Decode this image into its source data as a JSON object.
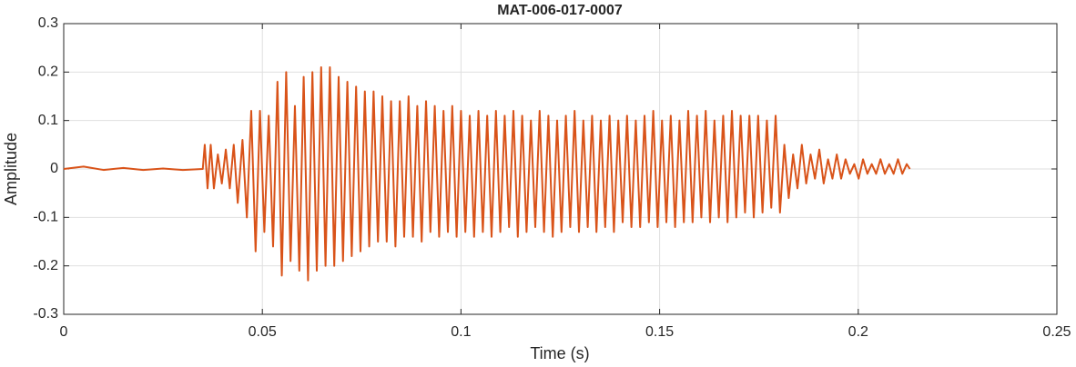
{
  "chart_data": {
    "type": "line",
    "title": "MAT-006-017-0007",
    "x_label": "Time (s)",
    "y_label": "Amplitude",
    "color": "#d95319",
    "grid": true,
    "xlim": [
      0,
      0.25
    ],
    "xticks": [
      0,
      0.05,
      0.1,
      0.15,
      0.2,
      0.25
    ],
    "ylim": [
      -0.3,
      0.3
    ],
    "yticks": [
      -0.3,
      -0.2,
      -0.1,
      0,
      0.1,
      0.2,
      0.3
    ],
    "x": [
      0,
      0.005,
      0.01,
      0.015,
      0.02,
      0.025,
      0.03,
      0.035,
      0.0355,
      0.0362,
      0.037,
      0.0378,
      0.0388,
      0.0398,
      0.0408,
      0.0418,
      0.0428,
      0.0438,
      0.045,
      0.0461,
      0.0472,
      0.0483,
      0.0494,
      0.0505,
      0.0516,
      0.0527,
      0.0538,
      0.0549,
      0.056,
      0.0571,
      0.0582,
      0.0593,
      0.0604,
      0.0615,
      0.0626,
      0.0637,
      0.0648,
      0.0659,
      0.067,
      0.0681,
      0.0692,
      0.0703,
      0.0714,
      0.0725,
      0.0736,
      0.0747,
      0.0758,
      0.0769,
      0.078,
      0.0791,
      0.0802,
      0.0813,
      0.0824,
      0.0835,
      0.0846,
      0.0857,
      0.0868,
      0.0879,
      0.089,
      0.0901,
      0.0912,
      0.0923,
      0.0934,
      0.0945,
      0.0956,
      0.0967,
      0.0978,
      0.0989,
      0.1,
      0.1011,
      0.1022,
      0.1033,
      0.1044,
      0.1055,
      0.1066,
      0.1077,
      0.1088,
      0.1099,
      0.111,
      0.1121,
      0.1132,
      0.1143,
      0.1154,
      0.1165,
      0.1176,
      0.1187,
      0.1198,
      0.1209,
      0.122,
      0.1231,
      0.1242,
      0.1253,
      0.1264,
      0.1275,
      0.1286,
      0.1297,
      0.1308,
      0.1319,
      0.133,
      0.1341,
      0.1352,
      0.1363,
      0.1374,
      0.1385,
      0.1396,
      0.1407,
      0.1418,
      0.1429,
      0.144,
      0.1451,
      0.1462,
      0.1473,
      0.1484,
      0.1495,
      0.1506,
      0.1517,
      0.1528,
      0.1539,
      0.155,
      0.1561,
      0.1572,
      0.1583,
      0.1594,
      0.1605,
      0.1616,
      0.1627,
      0.1638,
      0.1649,
      0.166,
      0.1671,
      0.1682,
      0.1693,
      0.1704,
      0.1715,
      0.1726,
      0.1737,
      0.1748,
      0.1759,
      0.177,
      0.1781,
      0.1792,
      0.1803,
      0.1814,
      0.1825,
      0.1836,
      0.1847,
      0.1858,
      0.1869,
      0.188,
      0.1891,
      0.1902,
      0.1913,
      0.1924,
      0.1935,
      0.1946,
      0.1957,
      0.1968,
      0.1979,
      0.199,
      0.2001,
      0.2012,
      0.2023,
      0.2034,
      0.2045,
      0.2056,
      0.2067,
      0.2078,
      0.2089,
      0.21,
      0.2111,
      0.2122,
      0.213
    ],
    "values": [
      0,
      0.005,
      -0.002,
      0.002,
      -0.002,
      0.001,
      -0.002,
      0,
      0.05,
      -0.04,
      0.05,
      -0.04,
      0.03,
      -0.03,
      0.04,
      -0.04,
      0.05,
      -0.07,
      0.06,
      -0.1,
      0.12,
      -0.17,
      0.12,
      -0.13,
      0.11,
      -0.16,
      0.18,
      -0.22,
      0.2,
      -0.19,
      0.13,
      -0.21,
      0.19,
      -0.23,
      0.2,
      -0.21,
      0.21,
      -0.2,
      0.21,
      -0.2,
      0.19,
      -0.19,
      0.18,
      -0.18,
      0.17,
      -0.17,
      0.16,
      -0.16,
      0.16,
      -0.15,
      0.15,
      -0.15,
      0.14,
      -0.16,
      0.14,
      -0.14,
      0.15,
      -0.14,
      0.13,
      -0.15,
      0.14,
      -0.13,
      0.13,
      -0.14,
      0.12,
      -0.13,
      0.13,
      -0.14,
      0.12,
      -0.13,
      0.11,
      -0.14,
      0.12,
      -0.13,
      0.11,
      -0.14,
      0.12,
      -0.13,
      0.11,
      -0.12,
      0.12,
      -0.14,
      0.11,
      -0.13,
      0.1,
      -0.12,
      0.12,
      -0.13,
      0.11,
      -0.14,
      0.1,
      -0.13,
      0.11,
      -0.12,
      0.12,
      -0.13,
      0.1,
      -0.12,
      0.11,
      -0.13,
      0.1,
      -0.12,
      0.11,
      -0.13,
      0.1,
      -0.11,
      0.11,
      -0.12,
      0.1,
      -0.12,
      0.11,
      -0.11,
      0.12,
      -0.12,
      0.1,
      -0.11,
      0.11,
      -0.12,
      0.1,
      -0.11,
      0.12,
      -0.11,
      0.11,
      -0.1,
      0.12,
      -0.11,
      0.1,
      -0.1,
      0.11,
      -0.11,
      0.12,
      -0.1,
      0.11,
      -0.09,
      0.11,
      -0.1,
      0.11,
      -0.09,
      0.1,
      -0.08,
      0.11,
      -0.09,
      0.05,
      -0.06,
      0.03,
      -0.04,
      0.05,
      -0.03,
      0.03,
      -0.02,
      0.04,
      -0.03,
      0.02,
      -0.02,
      0.03,
      -0.02,
      0.02,
      -0.01,
      0.01,
      -0.02,
      0.02,
      -0.01,
      0.01,
      -0.01,
      0.02,
      -0.01,
      0.01,
      -0.01,
      0.02,
      -0.01,
      0.01,
      0
    ]
  }
}
